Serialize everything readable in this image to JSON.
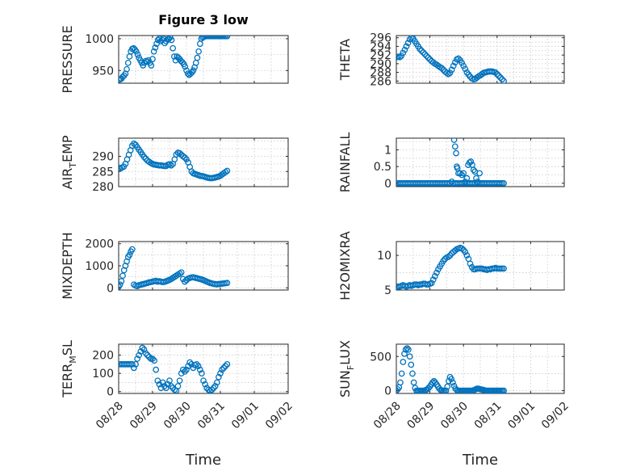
{
  "chart_data": [
    {
      "type": "scatter",
      "title": "Figure 3 low",
      "ylabel": "PRESSURE",
      "xlim": [
        "08/28",
        "09/02"
      ],
      "ylim": [
        930,
        1005
      ],
      "yticks": [
        950,
        1000
      ],
      "ytick_labels": [
        "950",
        "1000"
      ],
      "xtick_labels": [],
      "xlabel": "",
      "grid": true,
      "color": "#0072bd",
      "x": [
        0,
        0.04,
        0.08,
        0.12,
        0.16,
        0.2,
        0.24,
        0.28,
        0.32,
        0.36,
        0.4,
        0.44,
        0.48,
        0.52,
        0.56,
        0.6,
        0.64,
        0.68,
        0.72,
        0.76,
        0.8,
        0.84,
        0.88,
        0.92,
        0.96,
        1.0,
        1.04,
        1.08,
        1.12,
        1.16,
        1.2,
        1.24,
        1.28,
        1.32,
        1.36,
        1.4,
        1.44,
        1.48,
        1.52,
        1.56,
        1.6,
        1.64,
        1.68,
        1.72,
        1.76,
        1.8,
        1.84,
        1.88,
        1.92,
        1.96,
        2.0,
        2.04,
        2.08,
        2.12,
        2.16,
        2.2,
        2.24,
        2.28,
        2.32,
        2.36,
        2.4,
        2.44,
        2.48,
        2.52,
        2.56,
        2.6,
        2.64,
        2.68,
        2.72,
        2.76,
        2.8,
        2.84,
        2.88,
        2.92,
        2.96,
        3.0,
        3.04,
        3.08,
        3.12,
        3.16,
        3.2
      ],
      "y": [
        935,
        936,
        937,
        940,
        942,
        945,
        952,
        962,
        972,
        980,
        984,
        985,
        983,
        980,
        975,
        970,
        966,
        962,
        958,
        962,
        965,
        964,
        966,
        962,
        958,
        968,
        980,
        986,
        992,
        998,
        1000,
        996,
        998,
        1000,
        993,
        996,
        999,
        1000,
        1002,
        998,
        985,
        972,
        966,
        972,
        970,
        968,
        965,
        963,
        960,
        956,
        950,
        945,
        943,
        945,
        947,
        950,
        955,
        962,
        970,
        980,
        992,
        1000,
        1002,
        1003,
        1004,
        1004,
        1004,
        1004,
        1004,
        1004,
        1004,
        1004,
        1004,
        1004,
        1004,
        1004,
        1004,
        1004,
        1004,
        1004,
        1004
      ]
    },
    {
      "type": "scatter",
      "title": "",
      "ylabel": "THETA",
      "xlim": [
        "08/28",
        "09/02"
      ],
      "ylim": [
        285.5,
        296.5
      ],
      "yticks": [
        286,
        288,
        290,
        292,
        294,
        296
      ],
      "ytick_labels": [
        "286",
        "288",
        "290",
        "292",
        "294",
        "296"
      ],
      "xtick_labels": [],
      "xlabel": "",
      "grid": true,
      "color": "#0072bd",
      "x": [
        0,
        0.05,
        0.1,
        0.15,
        0.2,
        0.25,
        0.3,
        0.35,
        0.4,
        0.45,
        0.5,
        0.55,
        0.6,
        0.65,
        0.7,
        0.75,
        0.8,
        0.85,
        0.9,
        0.95,
        1.0,
        1.05,
        1.1,
        1.15,
        1.2,
        1.25,
        1.3,
        1.35,
        1.4,
        1.45,
        1.5,
        1.55,
        1.6,
        1.65,
        1.7,
        1.75,
        1.8,
        1.85,
        1.9,
        1.95,
        2.0,
        2.05,
        2.1,
        2.15,
        2.2,
        2.25,
        2.3,
        2.35,
        2.4,
        2.45,
        2.5,
        2.55,
        2.6,
        2.65,
        2.7,
        2.75,
        2.8,
        2.85,
        2.9,
        2.95,
        3.0,
        3.05,
        3.1,
        3.15,
        3.2
      ],
      "y": [
        291.5,
        291.6,
        291.5,
        291.8,
        292.5,
        293.2,
        294.0,
        294.8,
        295.6,
        296.0,
        295.8,
        295.2,
        294.6,
        294.0,
        293.4,
        293.0,
        292.6,
        292.2,
        291.8,
        291.4,
        291.0,
        290.6,
        290.3,
        290.0,
        289.8,
        289.5,
        289.2,
        289.0,
        288.6,
        288.2,
        287.9,
        287.6,
        287.9,
        288.6,
        289.5,
        290.3,
        291.0,
        291.2,
        290.8,
        290.2,
        289.5,
        288.8,
        288.0,
        287.5,
        287.0,
        286.6,
        286.4,
        286.5,
        286.8,
        287.1,
        287.3,
        287.6,
        287.9,
        288.0,
        288.1,
        288.2,
        288.2,
        288.2,
        288.1,
        288.0,
        287.6,
        287.2,
        286.8,
        286.4,
        286.0
      ]
    },
    {
      "type": "scatter",
      "title": "",
      "ylabel": "AIR_TEMP",
      "xlim": [
        "08/28",
        "09/02"
      ],
      "ylim": [
        280,
        296
      ],
      "yticks": [
        280,
        285,
        290
      ],
      "ytick_labels": [
        "280",
        "285",
        "290"
      ],
      "xtick_labels": [],
      "xlabel": "",
      "grid": true,
      "color": "#0072bd",
      "x": [
        0,
        0.05,
        0.1,
        0.15,
        0.2,
        0.25,
        0.3,
        0.35,
        0.4,
        0.45,
        0.5,
        0.55,
        0.6,
        0.65,
        0.7,
        0.75,
        0.8,
        0.85,
        0.9,
        0.95,
        1.0,
        1.05,
        1.1,
        1.15,
        1.2,
        1.25,
        1.3,
        1.35,
        1.4,
        1.45,
        1.5,
        1.55,
        1.6,
        1.65,
        1.7,
        1.75,
        1.8,
        1.85,
        1.9,
        1.95,
        2.0,
        2.05,
        2.1,
        2.15,
        2.2,
        2.25,
        2.3,
        2.35,
        2.4,
        2.45,
        2.5,
        2.55,
        2.6,
        2.65,
        2.7,
        2.75,
        2.8,
        2.85,
        2.9,
        2.95,
        3.0,
        3.05,
        3.1,
        3.15,
        3.2
      ],
      "y": [
        286.2,
        286.0,
        286.3,
        286.6,
        287.5,
        289.0,
        290.5,
        292.0,
        293.5,
        294.2,
        293.8,
        293.0,
        292.2,
        291.4,
        290.6,
        289.8,
        289.2,
        288.6,
        288.2,
        287.8,
        287.5,
        287.3,
        287.2,
        287.1,
        287.0,
        287.0,
        286.9,
        286.8,
        286.8,
        287.2,
        287.4,
        287.0,
        287.5,
        289.0,
        290.6,
        291.2,
        291.0,
        290.5,
        290.0,
        289.6,
        289.0,
        288.0,
        286.5,
        285.0,
        284.4,
        284.2,
        284.0,
        283.8,
        283.6,
        283.5,
        283.4,
        283.2,
        283.0,
        282.9,
        282.8,
        282.8,
        282.9,
        283.0,
        283.2,
        283.3,
        283.6,
        284.0,
        284.4,
        284.8,
        285.2
      ]
    },
    {
      "type": "scatter",
      "title": "",
      "ylabel": "RAINFALL",
      "xlim": [
        "08/28",
        "09/02"
      ],
      "ylim": [
        -0.1,
        1.35
      ],
      "yticks": [
        0,
        0.5,
        1
      ],
      "ytick_labels": [
        "0",
        "0.5",
        "1"
      ],
      "xtick_labels": [],
      "xlabel": "",
      "grid": true,
      "color": "#0072bd",
      "x": [
        0,
        0.05,
        0.1,
        0.15,
        0.2,
        0.25,
        0.3,
        0.35,
        0.4,
        0.45,
        0.5,
        0.55,
        0.6,
        0.65,
        0.7,
        0.75,
        0.8,
        0.85,
        0.9,
        0.95,
        1.0,
        1.05,
        1.1,
        1.15,
        1.2,
        1.25,
        1.3,
        1.35,
        1.4,
        1.45,
        1.5,
        1.55,
        1.6,
        1.65,
        1.7,
        1.75,
        1.8,
        1.85,
        1.9,
        1.95,
        2.0,
        2.05,
        2.1,
        2.15,
        2.2,
        2.25,
        2.3,
        2.35,
        2.4,
        2.45,
        2.5,
        2.55,
        2.6,
        2.65,
        2.7,
        2.75,
        2.8,
        2.85,
        2.9,
        2.95,
        3.0,
        3.05,
        3.1,
        3.15,
        3.2,
        1.72,
        1.75,
        1.78,
        1.8,
        1.82,
        1.85,
        1.9,
        1.95,
        2.0,
        2.05,
        2.1,
        2.14,
        2.18,
        2.22,
        2.26,
        2.3,
        2.34,
        2.38,
        2.42,
        2.48
      ],
      "y": [
        0,
        0,
        0,
        0,
        0,
        0,
        0,
        0,
        0,
        0,
        0,
        0,
        0,
        0,
        0,
        0,
        0,
        0,
        0,
        0,
        0,
        0,
        0,
        0,
        0,
        0,
        0,
        0,
        0,
        0,
        0,
        0,
        0,
        0.05,
        0,
        0,
        0,
        0,
        0,
        0,
        0,
        0,
        0,
        0,
        0,
        0,
        0,
        0,
        0,
        0,
        0,
        0,
        0,
        0,
        0,
        0,
        0,
        0,
        0,
        0,
        0,
        0,
        0,
        0,
        0,
        1.3,
        1.1,
        0.9,
        0.5,
        0.45,
        0.3,
        0.3,
        0.25,
        0.3,
        0.05,
        0.15,
        0.55,
        0.62,
        0.65,
        0.55,
        0.4,
        0.35,
        0.15,
        0.05,
        0.3
      ]
    },
    {
      "type": "scatter",
      "title": "",
      "ylabel": "MIXDEPTH",
      "xlim": [
        "08/28",
        "09/02"
      ],
      "ylim": [
        -100,
        2100
      ],
      "yticks": [
        0,
        1000,
        2000
      ],
      "ytick_labels": [
        "0",
        "1000",
        "2000"
      ],
      "xtick_labels": [],
      "xlabel": "",
      "grid": true,
      "color": "#0072bd",
      "x": [
        0,
        0.04,
        0.08,
        0.12,
        0.16,
        0.2,
        0.24,
        0.28,
        0.32,
        0.36,
        0.4,
        0.45,
        0.5,
        0.55,
        0.6,
        0.65,
        0.7,
        0.75,
        0.8,
        0.85,
        0.9,
        0.95,
        1.0,
        1.05,
        1.1,
        1.15,
        1.2,
        1.25,
        1.3,
        1.35,
        1.4,
        1.45,
        1.5,
        1.55,
        1.6,
        1.65,
        1.7,
        1.75,
        1.8,
        1.85,
        1.9,
        1.95,
        2.0,
        2.05,
        2.1,
        2.15,
        2.2,
        2.25,
        2.3,
        2.35,
        2.4,
        2.45,
        2.5,
        2.55,
        2.6,
        2.65,
        2.7,
        2.75,
        2.8,
        2.85,
        2.9,
        2.95,
        3.0,
        3.05,
        3.1,
        3.15,
        3.2
      ],
      "y": [
        50,
        150,
        300,
        550,
        800,
        1000,
        1200,
        1400,
        1500,
        1650,
        1750,
        150,
        100,
        80,
        120,
        140,
        160,
        180,
        200,
        220,
        250,
        260,
        280,
        300,
        320,
        280,
        300,
        280,
        260,
        270,
        300,
        330,
        360,
        400,
        450,
        500,
        550,
        600,
        650,
        700,
        400,
        280,
        350,
        420,
        450,
        470,
        480,
        460,
        440,
        420,
        400,
        380,
        350,
        320,
        280,
        250,
        220,
        200,
        180,
        170,
        160,
        170,
        180,
        190,
        200,
        210,
        220
      ]
    },
    {
      "type": "scatter",
      "title": "",
      "ylabel": "H2OMIXRA",
      "xlim": [
        "08/28",
        "09/02"
      ],
      "ylim": [
        5,
        12
      ],
      "yticks": [
        5,
        10
      ],
      "ytick_labels": [
        "5",
        "10"
      ],
      "xtick_labels": [],
      "xlabel": "",
      "grid": true,
      "color": "#0072bd",
      "x": [
        0,
        0.05,
        0.1,
        0.15,
        0.2,
        0.25,
        0.3,
        0.35,
        0.4,
        0.45,
        0.5,
        0.55,
        0.6,
        0.65,
        0.7,
        0.75,
        0.8,
        0.85,
        0.9,
        0.95,
        1.0,
        1.05,
        1.1,
        1.15,
        1.2,
        1.25,
        1.3,
        1.35,
        1.4,
        1.45,
        1.5,
        1.55,
        1.6,
        1.65,
        1.7,
        1.75,
        1.8,
        1.85,
        1.9,
        1.95,
        2.0,
        2.05,
        2.1,
        2.15,
        2.2,
        2.25,
        2.3,
        2.35,
        2.4,
        2.45,
        2.5,
        2.55,
        2.6,
        2.65,
        2.7,
        2.75,
        2.8,
        2.85,
        2.9,
        2.95,
        3.0,
        3.05,
        3.1,
        3.15,
        3.2
      ],
      "y": [
        5.4,
        5.5,
        5.5,
        5.6,
        5.7,
        5.6,
        5.5,
        5.6,
        5.7,
        5.6,
        5.7,
        5.8,
        5.8,
        5.7,
        5.8,
        5.8,
        5.9,
        5.9,
        5.8,
        5.8,
        5.9,
        6.0,
        6.5,
        7.0,
        7.5,
        8.0,
        8.4,
        8.8,
        9.2,
        9.5,
        9.7,
        9.8,
        10.0,
        10.3,
        10.5,
        10.7,
        10.9,
        11.0,
        11.1,
        11.0,
        10.8,
        10.5,
        10.0,
        9.5,
        8.8,
        8.3,
        8.0,
        8.0,
        8.1,
        8.1,
        8.1,
        8.1,
        8.0,
        8.0,
        7.9,
        8.0,
        8.0,
        8.1,
        8.1,
        8.2,
        8.1,
        8.1,
        8.1,
        8.1,
        8.1
      ]
    },
    {
      "type": "scatter",
      "title": "",
      "ylabel": "TERR_MSL",
      "xlim": [
        "08/28",
        "09/02"
      ],
      "ylim": [
        -10,
        260
      ],
      "yticks": [
        0,
        100,
        200
      ],
      "ytick_labels": [
        "0",
        "100",
        "200"
      ],
      "xtick_labels": [
        "08/28",
        "08/29",
        "08/30",
        "08/31",
        "09/01",
        "09/02"
      ],
      "xlabel": "Time",
      "grid": true,
      "color": "#0072bd",
      "x": [
        0,
        0.05,
        0.1,
        0.15,
        0.2,
        0.25,
        0.3,
        0.35,
        0.4,
        0.45,
        0.5,
        0.55,
        0.6,
        0.65,
        0.7,
        0.75,
        0.8,
        0.85,
        0.9,
        0.95,
        1.0,
        1.05,
        1.1,
        1.15,
        1.2,
        1.25,
        1.3,
        1.35,
        1.4,
        1.45,
        1.5,
        1.55,
        1.6,
        1.65,
        1.7,
        1.75,
        1.8,
        1.85,
        1.9,
        1.95,
        2.0,
        2.05,
        2.1,
        2.15,
        2.2,
        2.25,
        2.3,
        2.35,
        2.4,
        2.45,
        2.5,
        2.55,
        2.6,
        2.65,
        2.7,
        2.75,
        2.8,
        2.85,
        2.9,
        2.95,
        3.0,
        3.05,
        3.1,
        3.15,
        3.2
      ],
      "y": [
        150,
        150,
        150,
        150,
        150,
        150,
        150,
        150,
        150,
        130,
        150,
        180,
        200,
        220,
        240,
        230,
        210,
        200,
        190,
        180,
        180,
        170,
        120,
        60,
        40,
        20,
        50,
        30,
        20,
        40,
        60,
        30,
        20,
        10,
        5,
        30,
        60,
        100,
        120,
        110,
        120,
        140,
        160,
        150,
        130,
        145,
        150,
        140,
        120,
        100,
        60,
        40,
        20,
        10,
        5,
        10,
        20,
        30,
        50,
        80,
        100,
        120,
        130,
        140,
        150
      ]
    },
    {
      "type": "scatter",
      "title": "",
      "ylabel": "SUN_FLUX",
      "xlim": [
        "08/28",
        "09/02"
      ],
      "ylim": [
        -40,
        680
      ],
      "yticks": [
        0,
        500
      ],
      "ytick_labels": [
        "0",
        "500"
      ],
      "xtick_labels": [
        "08/28",
        "08/29",
        "08/30",
        "08/31",
        "09/01",
        "09/02"
      ],
      "xlabel": "Time",
      "grid": true,
      "color": "#0072bd",
      "x": [
        0,
        0.04,
        0.08,
        0.12,
        0.16,
        0.2,
        0.24,
        0.28,
        0.32,
        0.36,
        0.4,
        0.44,
        0.48,
        0.52,
        0.56,
        0.6,
        0.64,
        0.68,
        0.72,
        0.76,
        0.8,
        0.84,
        0.88,
        0.92,
        0.96,
        1.0,
        1.04,
        1.08,
        1.12,
        1.16,
        1.2,
        1.24,
        1.28,
        1.32,
        1.36,
        1.4,
        1.44,
        1.48,
        1.52,
        1.56,
        1.6,
        1.64,
        1.68,
        1.72,
        1.76,
        1.8,
        1.84,
        1.88,
        1.92,
        1.96,
        2.0,
        2.04,
        2.08,
        2.12,
        2.16,
        2.2,
        2.24,
        2.28,
        2.32,
        2.36,
        2.4,
        2.44,
        2.48,
        2.52,
        2.56,
        2.6,
        2.64,
        2.68,
        2.72,
        2.76,
        2.8,
        2.84,
        2.88,
        2.92,
        2.96,
        3.0,
        3.04,
        3.08,
        3.12,
        3.16,
        3.2
      ],
      "y": [
        0,
        20,
        50,
        120,
        250,
        420,
        540,
        600,
        620,
        600,
        500,
        380,
        250,
        120,
        40,
        0,
        0,
        0,
        0,
        0,
        0,
        0,
        10,
        20,
        40,
        60,
        90,
        120,
        140,
        120,
        90,
        60,
        30,
        10,
        5,
        0,
        0,
        0,
        60,
        140,
        200,
        170,
        120,
        70,
        30,
        10,
        0,
        0,
        0,
        0,
        0,
        0,
        0,
        0,
        0,
        0,
        0,
        0,
        10,
        20,
        30,
        30,
        25,
        20,
        15,
        10,
        5,
        0,
        0,
        0,
        0,
        0,
        0,
        0,
        0,
        0,
        0,
        0,
        0,
        0,
        0
      ]
    }
  ]
}
